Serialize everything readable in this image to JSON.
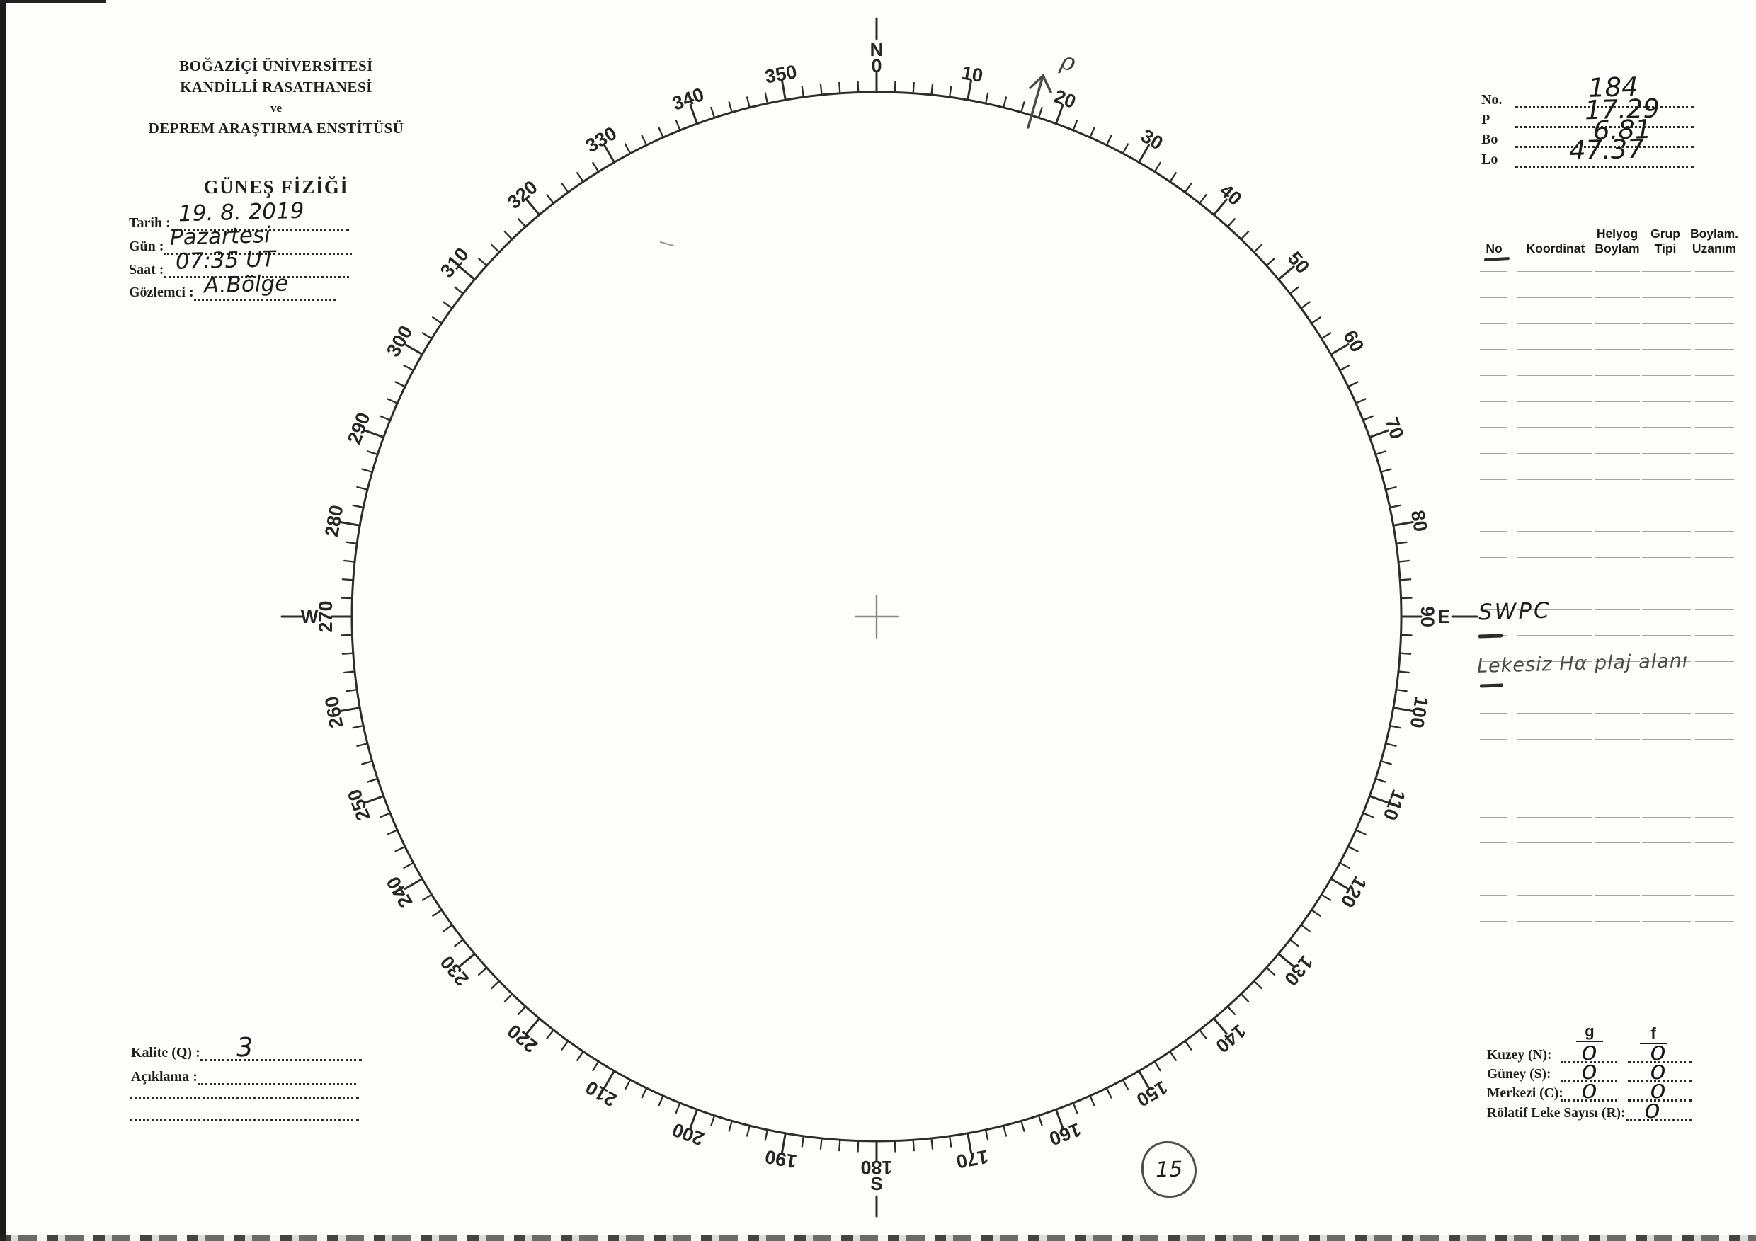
{
  "header": {
    "institution_line1": "BOĞAZİÇİ ÜNİVERSİTESİ",
    "institution_line2": "KANDİLLİ RASATHANESİ",
    "conjunction": "ve",
    "institution_line3": "DEPREM ARAŞTIRMA ENSTİTÜSÜ",
    "form_title": "GÜNEŞ FİZİĞİ"
  },
  "observation": {
    "tarih_label": "Tarih :",
    "tarih_value": "19. 8. 2019",
    "gun_label": "Gün :",
    "gun_value": "Pazartesi",
    "saat_label": "Saat :",
    "saat_value": "07:35 UT",
    "gozlemci_label": "Gözlemci :",
    "gozlemci_value": "A.Bölge"
  },
  "ephemeris": {
    "no_label": "No.",
    "no_value": "184",
    "p_label": "P",
    "p_value": "17.29",
    "bo_label": "Bo",
    "bo_value": "6.81",
    "lo_label": "Lo",
    "lo_value": "47.37"
  },
  "table": {
    "col_no": "No",
    "col_koordinat": "Koordinat",
    "col_helyog": "Helyog\nBoylam",
    "col_grup": "Grup\nTipi",
    "col_boylam": "Boylam.\nUzanım",
    "annotation_swpc": "SWPC",
    "annotation_note": "Lekesiz Hα plaj alanı"
  },
  "quality": {
    "kalite_label": "Kalite (Q) :",
    "kalite_value": "3",
    "aciklama_label": "Açıklama :"
  },
  "counts": {
    "g_header": "g",
    "f_header": "f",
    "rows": [
      {
        "label": "Kuzey (N):",
        "g": "0",
        "f": "0"
      },
      {
        "label": "Güney (S):",
        "g": "0",
        "f": "0"
      },
      {
        "label": "Merkezi (C):",
        "g": "0",
        "f": "0"
      }
    ],
    "relative_label": "Rölatif Leke Sayısı (R):",
    "relative_value": "0"
  },
  "page_number": "15",
  "dial": {
    "north": "N",
    "south": "S",
    "east": "E",
    "west": "W",
    "degree_labels": [
      "0",
      "10",
      "20",
      "30",
      "40",
      "50",
      "60",
      "70",
      "80",
      "90",
      "100",
      "110",
      "120",
      "130",
      "140",
      "150",
      "160",
      "170",
      "180",
      "190",
      "200",
      "210",
      "220",
      "230",
      "240",
      "250",
      "260",
      "270",
      "280",
      "290",
      "300",
      "310",
      "320",
      "330",
      "340",
      "350"
    ],
    "minor_step_deg": 2,
    "major_step_deg": 10,
    "position_angle_annotation": "ρ",
    "position_angle_deg": 16
  }
}
